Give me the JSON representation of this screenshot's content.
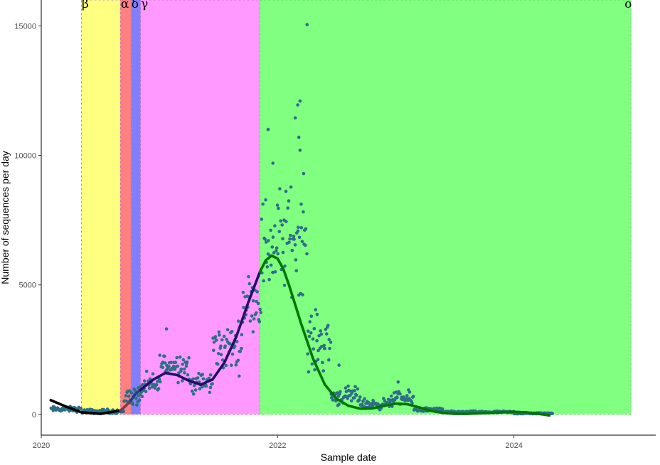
{
  "chart_data": {
    "type": "scatter",
    "xlabel": "Sample date",
    "ylabel": "Number of sequences per day",
    "xlim": [
      2020.0,
      2025.2
    ],
    "ylim": [
      -800,
      16000
    ],
    "x_ticks": [
      {
        "value": 2020,
        "label": "2020"
      },
      {
        "value": 2022,
        "label": "2022"
      },
      {
        "value": 2024,
        "label": "2024"
      }
    ],
    "y_ticks": [
      {
        "value": 0,
        "label": "0"
      },
      {
        "value": 5000,
        "label": "5000"
      },
      {
        "value": 10000,
        "label": "10000"
      },
      {
        "value": 15000,
        "label": "15000"
      }
    ],
    "grid": false,
    "bands": [
      {
        "label": "β",
        "start": 2020.34,
        "end": 2020.67,
        "color": "#ffff80"
      },
      {
        "label": "α",
        "start": 2020.67,
        "end": 2020.76,
        "color": "#ff8080"
      },
      {
        "label": "δ",
        "start": 2020.76,
        "end": 2020.84,
        "color": "#8080ff"
      },
      {
        "label": "γ",
        "start": 2020.84,
        "end": 2021.85,
        "color": "#ff99ff"
      },
      {
        "label": "o",
        "start": 2021.85,
        "end": 2024.99,
        "color": "#80ff80"
      }
    ],
    "band_top": 16000,
    "point_color": "#2e6e87",
    "point_segments": [
      {
        "x_start": 2020.08,
        "x_end": 2020.34,
        "mean": 200,
        "spread": 150
      },
      {
        "x_start": 2020.34,
        "x_end": 2020.7,
        "mean": 120,
        "spread": 120
      },
      {
        "x_start": 2020.7,
        "x_end": 2020.85,
        "mean": 700,
        "spread": 600
      },
      {
        "x_start": 2020.85,
        "x_end": 2021.0,
        "mean": 1100,
        "spread": 700
      },
      {
        "x_start": 2021.0,
        "x_end": 2021.25,
        "mean": 1900,
        "spread": 800
      },
      {
        "x_start": 2021.25,
        "x_end": 2021.45,
        "mean": 1200,
        "spread": 600
      },
      {
        "x_start": 2021.45,
        "x_end": 2021.7,
        "mean": 2600,
        "spread": 1300
      },
      {
        "x_start": 2021.7,
        "x_end": 2021.86,
        "mean": 4400,
        "spread": 1500
      },
      {
        "x_start": 2021.86,
        "x_end": 2022.0,
        "mean": 6500,
        "spread": 2800
      },
      {
        "x_start": 2022.0,
        "x_end": 2022.25,
        "mean": 6800,
        "spread": 3000
      },
      {
        "x_start": 2022.25,
        "x_end": 2022.45,
        "mean": 2800,
        "spread": 1600
      },
      {
        "x_start": 2022.45,
        "x_end": 2022.7,
        "mean": 700,
        "spread": 500
      },
      {
        "x_start": 2022.7,
        "x_end": 2022.95,
        "mean": 400,
        "spread": 300
      },
      {
        "x_start": 2022.95,
        "x_end": 2023.15,
        "mean": 600,
        "spread": 400
      },
      {
        "x_start": 2023.15,
        "x_end": 2023.4,
        "mean": 180,
        "spread": 120
      },
      {
        "x_start": 2023.4,
        "x_end": 2024.0,
        "mean": 90,
        "spread": 60
      },
      {
        "x_start": 2024.0,
        "x_end": 2024.33,
        "mean": 40,
        "spread": 40
      }
    ],
    "notable_points": [
      {
        "x": 2022.25,
        "y": 15050
      },
      {
        "x": 2022.19,
        "y": 12100
      },
      {
        "x": 2022.17,
        "y": 11950
      },
      {
        "x": 2022.15,
        "y": 11450
      },
      {
        "x": 2022.18,
        "y": 10700
      },
      {
        "x": 2021.92,
        "y": 11000
      },
      {
        "x": 2022.19,
        "y": 10200
      },
      {
        "x": 2021.96,
        "y": 9700
      },
      {
        "x": 2022.22,
        "y": 9300
      },
      {
        "x": 2023.02,
        "y": 1250
      },
      {
        "x": 2022.52,
        "y": 1900
      },
      {
        "x": 2021.06,
        "y": 3300
      }
    ],
    "trend_lines": [
      {
        "color": "#000000",
        "points": [
          [
            2020.08,
            550
          ],
          [
            2020.2,
            320
          ],
          [
            2020.34,
            80
          ],
          [
            2020.5,
            20
          ],
          [
            2020.67,
            150
          ]
        ]
      },
      {
        "color": "#7a3b4f",
        "points": [
          [
            2020.67,
            150
          ],
          [
            2020.72,
            350
          ],
          [
            2020.76,
            550
          ]
        ]
      },
      {
        "color": "#2b3a7a",
        "points": [
          [
            2020.76,
            550
          ],
          [
            2020.8,
            800
          ],
          [
            2020.84,
            950
          ]
        ]
      },
      {
        "color": "#250b6b",
        "points": [
          [
            2020.84,
            950
          ],
          [
            2020.95,
            1350
          ],
          [
            2021.05,
            1600
          ],
          [
            2021.15,
            1520
          ],
          [
            2021.25,
            1300
          ],
          [
            2021.35,
            1150
          ],
          [
            2021.45,
            1350
          ],
          [
            2021.55,
            2000
          ],
          [
            2021.65,
            3000
          ],
          [
            2021.75,
            4300
          ],
          [
            2021.85,
            5500
          ]
        ]
      },
      {
        "color": "#007700",
        "points": [
          [
            2021.85,
            5500
          ],
          [
            2021.9,
            5950
          ],
          [
            2021.95,
            6130
          ],
          [
            2022.0,
            6020
          ],
          [
            2022.05,
            5600
          ],
          [
            2022.1,
            4950
          ],
          [
            2022.2,
            3500
          ],
          [
            2022.3,
            2150
          ],
          [
            2022.4,
            1150
          ],
          [
            2022.5,
            600
          ],
          [
            2022.6,
            330
          ],
          [
            2022.7,
            220
          ],
          [
            2022.8,
            230
          ],
          [
            2022.9,
            330
          ],
          [
            2023.0,
            420
          ],
          [
            2023.1,
            390
          ],
          [
            2023.2,
            270
          ],
          [
            2023.3,
            140
          ],
          [
            2023.4,
            60
          ],
          [
            2023.5,
            20
          ],
          [
            2023.6,
            20
          ],
          [
            2023.8,
            60
          ],
          [
            2024.0,
            100
          ],
          [
            2024.1,
            80
          ],
          [
            2024.2,
            30
          ],
          [
            2024.3,
            -40
          ]
        ]
      }
    ]
  }
}
